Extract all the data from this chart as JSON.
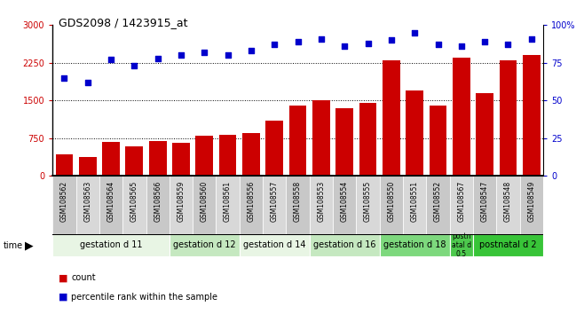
{
  "title": "GDS2098 / 1423915_at",
  "samples": [
    "GSM108562",
    "GSM108563",
    "GSM108564",
    "GSM108565",
    "GSM108566",
    "GSM108559",
    "GSM108560",
    "GSM108561",
    "GSM108556",
    "GSM108557",
    "GSM108558",
    "GSM108553",
    "GSM108554",
    "GSM108555",
    "GSM108550",
    "GSM108551",
    "GSM108552",
    "GSM108567",
    "GSM108547",
    "GSM108548",
    "GSM108549"
  ],
  "counts": [
    430,
    370,
    680,
    590,
    690,
    650,
    790,
    820,
    850,
    1100,
    1400,
    1500,
    1350,
    1450,
    2300,
    1700,
    1400,
    2350,
    1650,
    2300,
    2400
  ],
  "percentiles": [
    65,
    62,
    77,
    73,
    78,
    80,
    82,
    80,
    83,
    87,
    89,
    91,
    86,
    88,
    90,
    95,
    87,
    86,
    89,
    87,
    91
  ],
  "bar_color": "#cc0000",
  "dot_color": "#0000cc",
  "ylim_left": [
    0,
    3000
  ],
  "ylim_right": [
    0,
    100
  ],
  "yticks_left": [
    0,
    750,
    1500,
    2250,
    3000
  ],
  "yticks_right": [
    0,
    25,
    50,
    75,
    100
  ],
  "ytick_labels_right": [
    "0",
    "25",
    "50",
    "75",
    "100%"
  ],
  "groups": [
    {
      "label": "gestation d 11",
      "start": 0,
      "end": 4,
      "color": "#e8f5e4"
    },
    {
      "label": "gestation d 12",
      "start": 5,
      "end": 7,
      "color": "#c5e8c0"
    },
    {
      "label": "gestation d 14",
      "start": 8,
      "end": 10,
      "color": "#e8f5e4"
    },
    {
      "label": "gestation d 16",
      "start": 11,
      "end": 13,
      "color": "#c5e8c0"
    },
    {
      "label": "gestation d 18",
      "start": 14,
      "end": 16,
      "color": "#7dd87d"
    },
    {
      "label": "postn\natal d\n0.5",
      "start": 17,
      "end": 17,
      "color": "#4dc94d"
    },
    {
      "label": "postnatal d 2",
      "start": 18,
      "end": 20,
      "color": "#38c438"
    }
  ],
  "legend_count_label": "count",
  "legend_pct_label": "percentile rank within the sample",
  "time_label": "time"
}
